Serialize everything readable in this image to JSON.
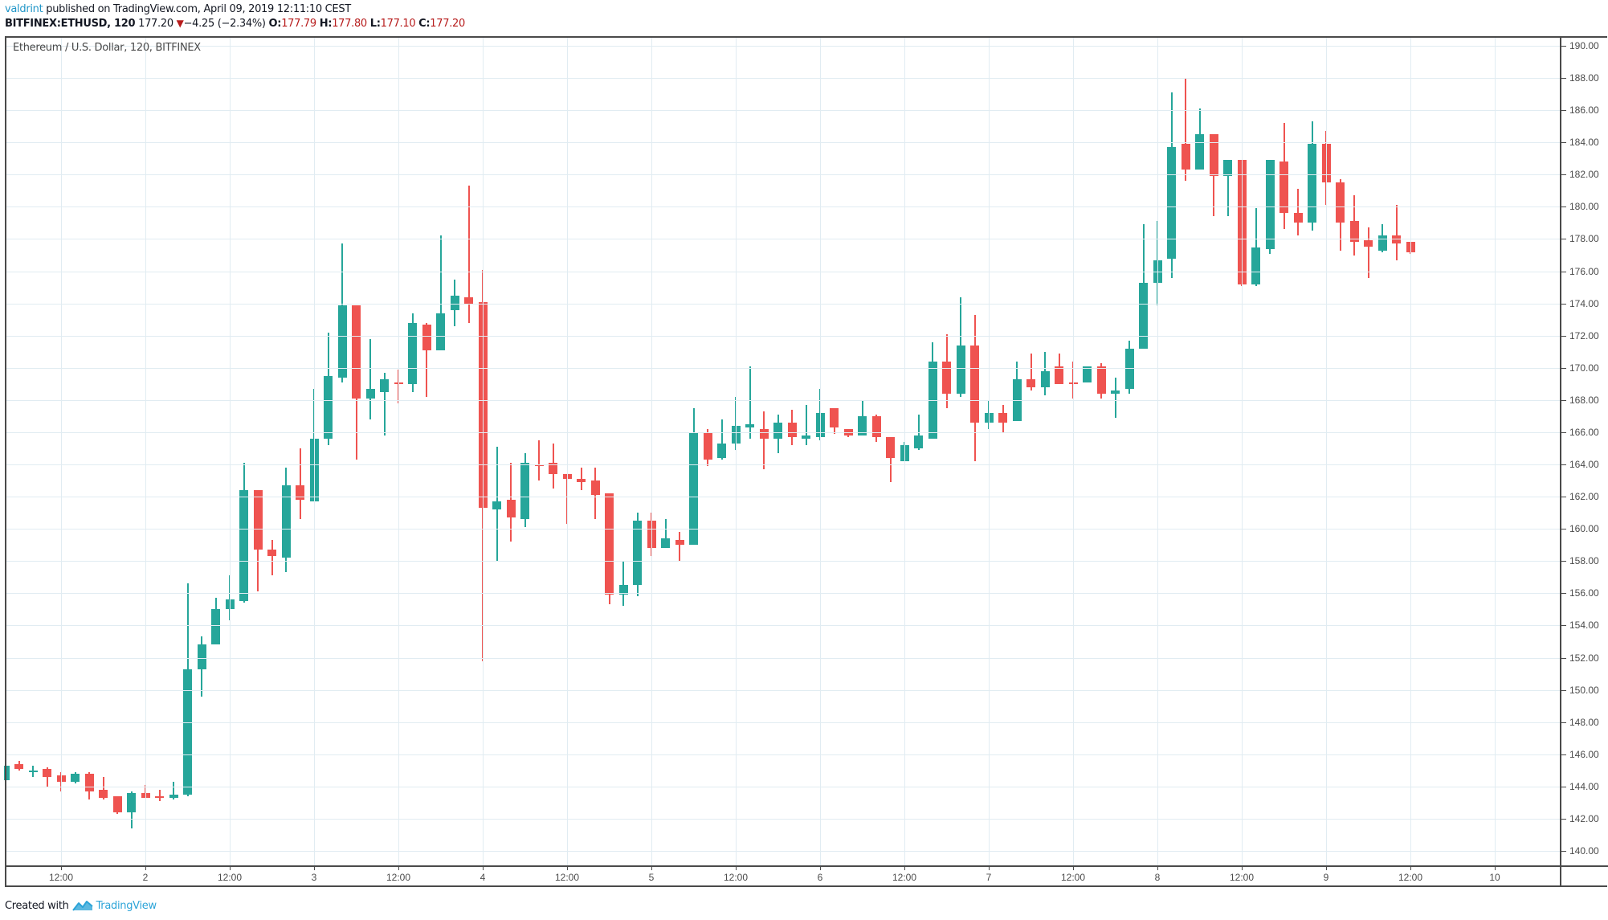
{
  "header": {
    "author": "valdrint",
    "published_text": " published on TradingView.com, April 09, 2019 12:11:10 CEST",
    "symbol": "BITFINEX:ETHUSD, 120",
    "last_price": "177.20",
    "change_arrow": "▼",
    "change": "−4.25 (−2.34%)",
    "open_label": "O:",
    "open": "177.79",
    "high_label": "H:",
    "high": "177.80",
    "low_label": "L:",
    "low": "177.10",
    "close_label": "C:",
    "close": "177.20"
  },
  "legend": "Ethereum / U.S. Dollar, 120, BITFINEX",
  "footer": {
    "created_with": "Created with",
    "brand": "TradingView"
  },
  "colors": {
    "up": "#26a69a",
    "down": "#ef5350",
    "grid": "#e1ecf2",
    "axis": "#4a4a4a"
  },
  "chart_data": {
    "type": "candlestick",
    "title": "Ethereum / U.S. Dollar, 120, BITFINEX",
    "symbol": "BITFINEX:ETHUSD",
    "interval": "120",
    "xlabel": "",
    "ylabel": "",
    "ylim": [
      138.9,
      190.6
    ],
    "grid": true,
    "y_ticks": [
      "190.00",
      "188.00",
      "186.00",
      "184.00",
      "182.00",
      "180.00",
      "178.00",
      "176.00",
      "174.00",
      "172.00",
      "170.00",
      "168.00",
      "166.00",
      "164.00",
      "162.00",
      "160.00",
      "158.00",
      "156.00",
      "154.00",
      "152.00",
      "150.00",
      "148.00",
      "146.00",
      "144.00",
      "142.00",
      "140.00"
    ],
    "x_ticks": [
      {
        "label": "12:00",
        "candle": 6
      },
      {
        "label": "2",
        "candle": 12
      },
      {
        "label": "12:00",
        "candle": 18
      },
      {
        "label": "3",
        "candle": 24
      },
      {
        "label": "12:00",
        "candle": 30
      },
      {
        "label": "4",
        "candle": 36
      },
      {
        "label": "12:00",
        "candle": 42
      },
      {
        "label": "5",
        "candle": 48
      },
      {
        "label": "12:00",
        "candle": 54
      },
      {
        "label": "6",
        "candle": 60
      },
      {
        "label": "12:00",
        "candle": 66
      },
      {
        "label": "7",
        "candle": 72
      },
      {
        "label": "12:00",
        "candle": 78
      },
      {
        "label": "8",
        "candle": 84
      },
      {
        "label": "12:00",
        "candle": 90
      },
      {
        "label": "9",
        "candle": 96
      },
      {
        "label": "12:00",
        "candle": 102
      },
      {
        "label": "10",
        "candle": 108
      }
    ],
    "first_candle_offset": -2,
    "candles": [
      [
        144.4,
        145.3,
        144.4,
        145.3
      ],
      [
        145.4,
        145.6,
        145.0,
        145.1
      ],
      [
        145.0,
        145.3,
        144.6,
        145.0
      ],
      [
        145.1,
        145.2,
        144.0,
        144.6
      ],
      [
        144.7,
        144.9,
        143.7,
        144.3
      ],
      [
        144.3,
        144.9,
        144.2,
        144.8
      ],
      [
        144.8,
        144.9,
        143.2,
        143.7
      ],
      [
        143.8,
        144.6,
        143.2,
        143.3
      ],
      [
        143.4,
        143.4,
        142.3,
        142.4
      ],
      [
        142.4,
        143.7,
        141.4,
        143.6
      ],
      [
        143.6,
        144.1,
        143.3,
        143.3
      ],
      [
        143.4,
        143.8,
        143.1,
        143.3
      ],
      [
        143.3,
        144.3,
        143.2,
        143.5
      ],
      [
        143.5,
        156.6,
        143.4,
        151.3
      ],
      [
        151.3,
        153.3,
        149.6,
        152.8
      ],
      [
        152.8,
        155.7,
        152.8,
        155.0
      ],
      [
        155.0,
        157.1,
        154.3,
        155.6
      ],
      [
        155.5,
        164.1,
        155.4,
        162.4
      ],
      [
        162.4,
        162.4,
        156.1,
        158.7
      ],
      [
        158.7,
        159.3,
        157.1,
        158.3
      ],
      [
        158.2,
        163.8,
        157.3,
        162.7
      ],
      [
        162.7,
        165.0,
        160.6,
        161.8
      ],
      [
        161.7,
        168.7,
        161.7,
        165.6
      ],
      [
        165.6,
        172.2,
        165.2,
        169.5
      ],
      [
        169.4,
        177.7,
        169.1,
        173.9
      ],
      [
        173.9,
        173.9,
        164.3,
        168.1
      ],
      [
        168.1,
        171.8,
        166.8,
        168.7
      ],
      [
        168.5,
        169.7,
        165.8,
        169.3
      ],
      [
        169.1,
        169.9,
        167.8,
        169.0
      ],
      [
        169.0,
        173.4,
        168.5,
        172.8
      ],
      [
        172.7,
        172.8,
        168.2,
        171.1
      ],
      [
        171.1,
        178.2,
        171.1,
        173.4
      ],
      [
        173.6,
        175.5,
        172.6,
        174.5
      ],
      [
        174.4,
        181.3,
        172.8,
        174.0
      ],
      [
        174.1,
        176.1,
        151.8,
        161.3
      ],
      [
        161.2,
        165.1,
        158.0,
        161.7
      ],
      [
        161.8,
        164.1,
        159.2,
        160.7
      ],
      [
        160.6,
        164.7,
        160.1,
        164.1
      ],
      [
        164.0,
        165.5,
        163.0,
        163.9
      ],
      [
        164.1,
        165.3,
        162.5,
        163.4
      ],
      [
        163.4,
        163.4,
        160.3,
        163.1
      ],
      [
        163.1,
        163.8,
        162.4,
        162.9
      ],
      [
        163.0,
        163.8,
        160.6,
        162.1
      ],
      [
        162.2,
        162.2,
        155.3,
        155.9
      ],
      [
        155.9,
        158.0,
        155.2,
        156.5
      ],
      [
        156.5,
        161.0,
        155.8,
        160.5
      ],
      [
        160.5,
        161.0,
        158.3,
        158.8
      ],
      [
        158.8,
        160.6,
        158.8,
        159.4
      ],
      [
        159.3,
        159.8,
        158.0,
        159.0
      ],
      [
        159.0,
        167.5,
        159.0,
        166.0
      ],
      [
        166.0,
        166.2,
        163.9,
        164.3
      ],
      [
        164.4,
        166.8,
        164.3,
        165.3
      ],
      [
        165.3,
        168.2,
        164.9,
        166.4
      ],
      [
        166.3,
        170.1,
        165.6,
        166.5
      ],
      [
        166.2,
        167.3,
        163.7,
        165.6
      ],
      [
        165.6,
        167.1,
        164.7,
        166.6
      ],
      [
        166.6,
        167.4,
        165.2,
        165.7
      ],
      [
        165.6,
        167.7,
        165.2,
        165.8
      ],
      [
        165.7,
        168.7,
        165.5,
        167.2
      ],
      [
        167.5,
        167.5,
        165.9,
        166.3
      ],
      [
        166.2,
        166.2,
        165.7,
        165.8
      ],
      [
        165.8,
        168.0,
        165.8,
        167.0
      ],
      [
        167.0,
        167.1,
        165.4,
        165.7
      ],
      [
        165.7,
        165.7,
        162.9,
        164.4
      ],
      [
        164.2,
        165.4,
        164.2,
        165.2
      ],
      [
        165.0,
        167.1,
        164.9,
        165.8
      ],
      [
        165.6,
        171.6,
        165.6,
        170.4
      ],
      [
        170.4,
        172.1,
        167.5,
        168.4
      ],
      [
        168.4,
        174.4,
        168.2,
        171.4
      ],
      [
        171.4,
        173.3,
        164.2,
        166.6
      ],
      [
        166.6,
        168.0,
        166.2,
        167.2
      ],
      [
        167.2,
        167.7,
        166.0,
        166.6
      ],
      [
        166.7,
        170.4,
        166.7,
        169.3
      ],
      [
        169.3,
        170.9,
        168.6,
        168.8
      ],
      [
        168.8,
        171.0,
        168.3,
        169.8
      ],
      [
        170.1,
        170.9,
        169.0,
        169.0
      ],
      [
        169.1,
        170.4,
        168.1,
        169.0
      ],
      [
        169.1,
        170.1,
        169.1,
        170.1
      ],
      [
        170.1,
        170.3,
        168.1,
        168.4
      ],
      [
        168.4,
        169.4,
        166.9,
        168.6
      ],
      [
        168.7,
        171.7,
        168.4,
        171.2
      ],
      [
        171.2,
        178.9,
        171.2,
        175.3
      ],
      [
        175.3,
        179.1,
        173.9,
        176.7
      ],
      [
        176.8,
        187.1,
        175.6,
        183.7
      ],
      [
        183.9,
        188.0,
        181.6,
        182.3
      ],
      [
        182.3,
        186.1,
        182.3,
        184.5
      ],
      [
        184.5,
        184.5,
        179.4,
        181.9
      ],
      [
        181.9,
        182.9,
        179.4,
        182.9
      ],
      [
        182.9,
        182.9,
        175.1,
        175.2
      ],
      [
        175.2,
        179.9,
        175.1,
        177.5
      ],
      [
        177.4,
        182.9,
        177.1,
        182.9
      ],
      [
        182.8,
        185.2,
        178.6,
        179.6
      ],
      [
        179.6,
        181.1,
        178.2,
        179.0
      ],
      [
        179.0,
        185.3,
        178.5,
        183.9
      ],
      [
        183.9,
        184.7,
        180.1,
        181.5
      ],
      [
        181.5,
        181.7,
        177.3,
        179.0
      ],
      [
        179.1,
        180.7,
        177.0,
        177.8
      ],
      [
        177.9,
        178.7,
        175.6,
        177.5
      ],
      [
        177.3,
        178.9,
        177.2,
        178.2
      ],
      [
        178.2,
        180.1,
        176.7,
        177.7
      ],
      [
        177.8,
        177.8,
        177.1,
        177.2
      ]
    ],
    "candle_format": [
      "open",
      "high",
      "low",
      "close"
    ]
  }
}
